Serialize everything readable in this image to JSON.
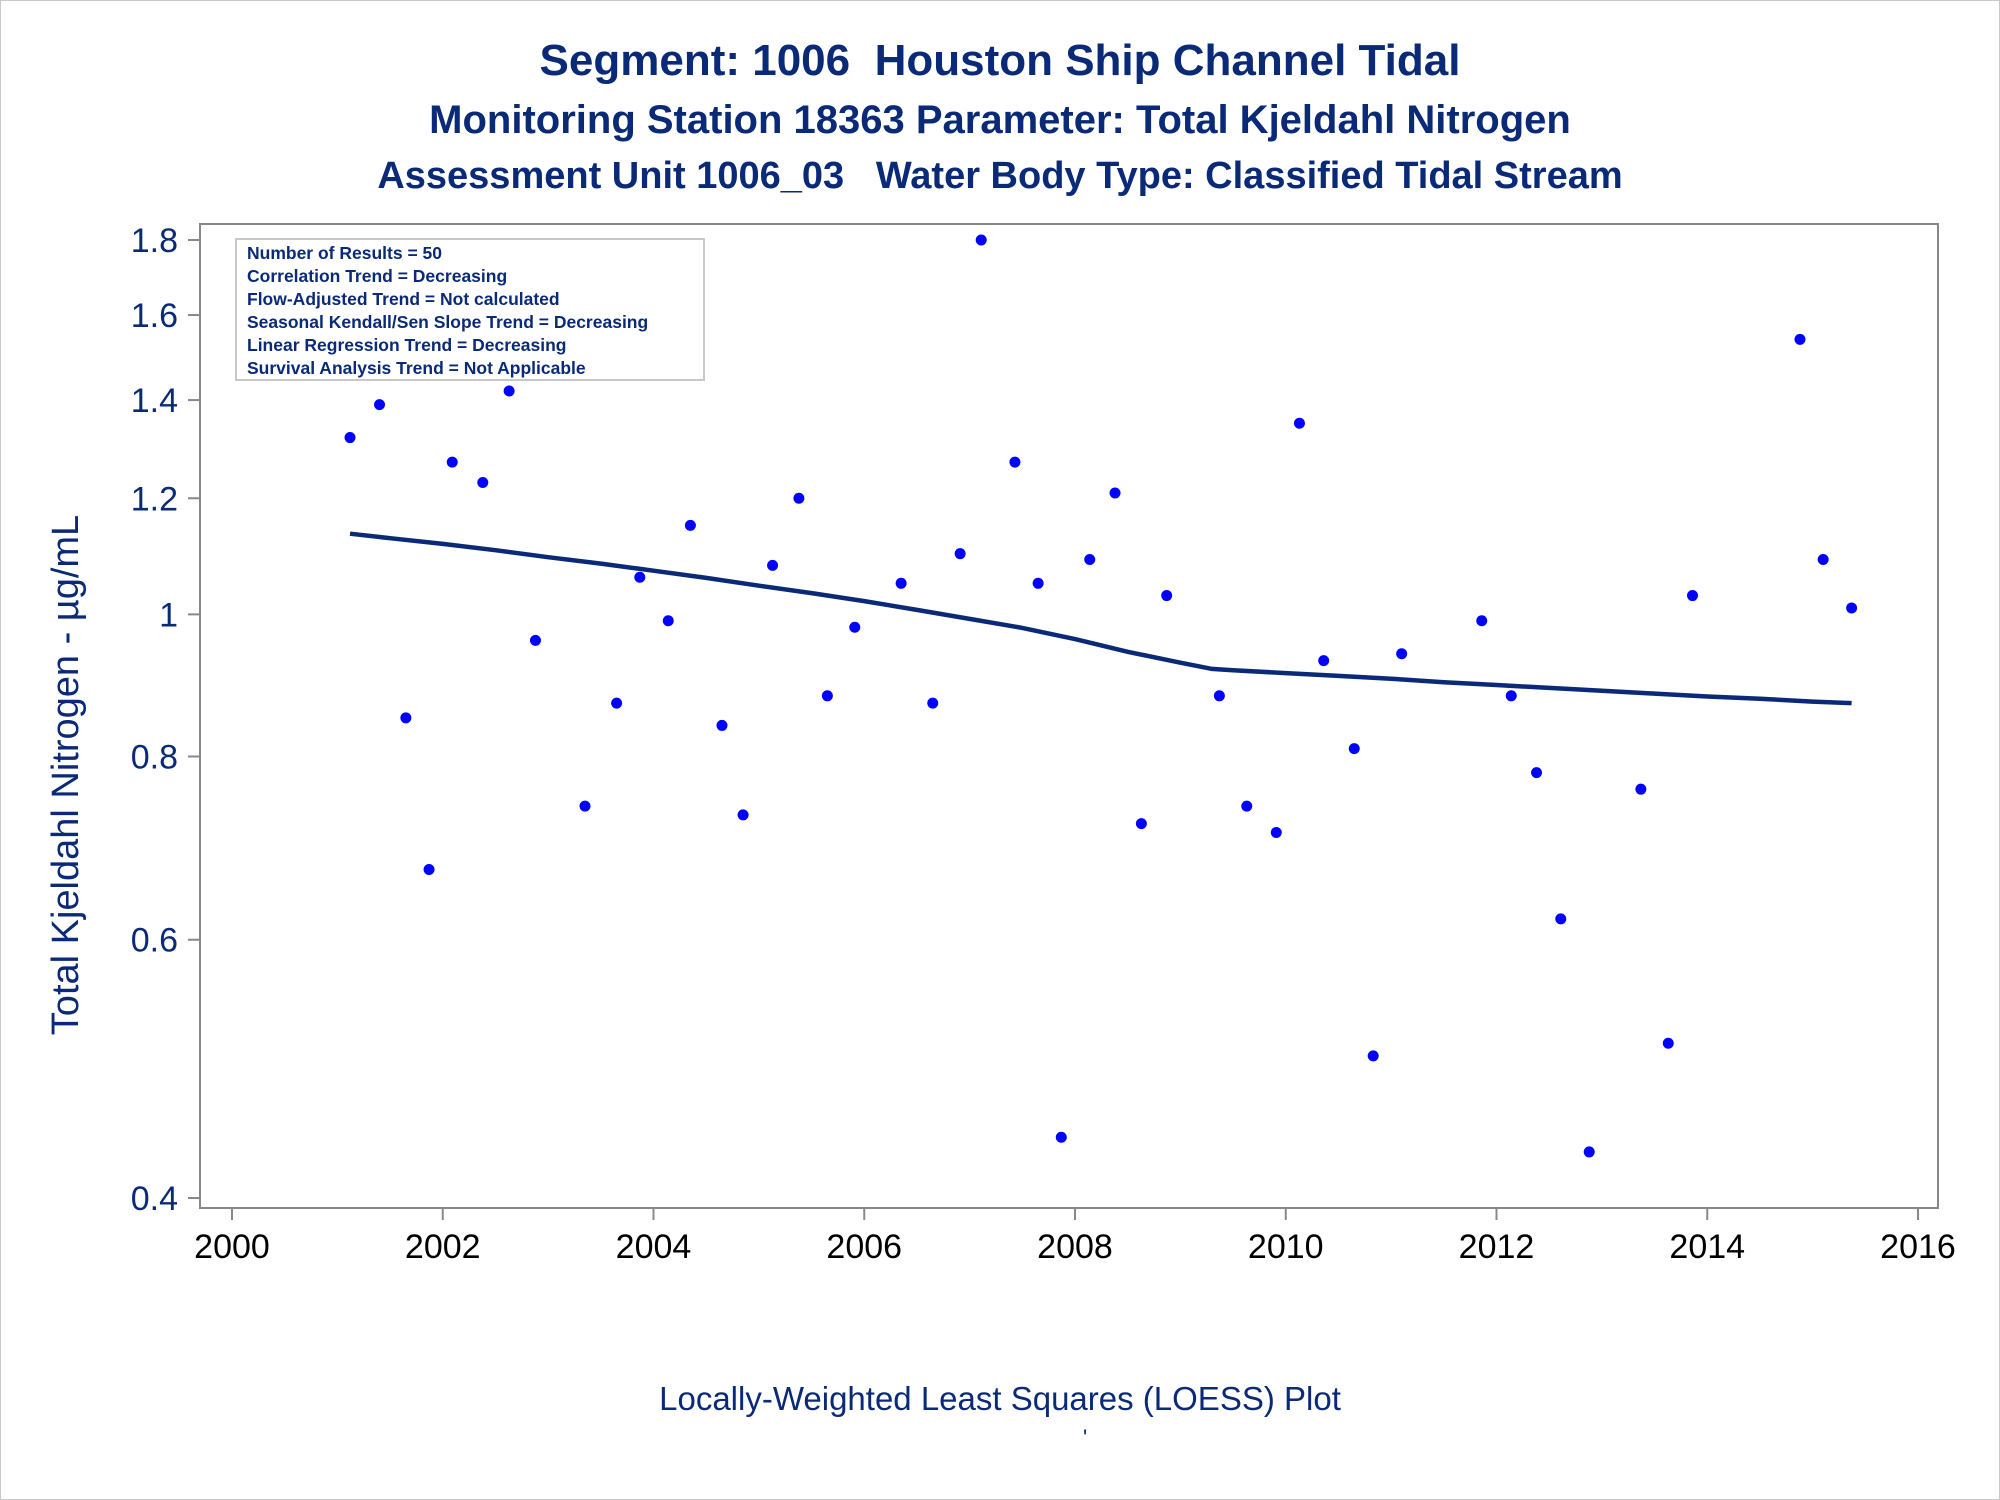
{
  "titles": {
    "line1": "Segment: 1006  Houston Ship Channel Tidal",
    "line2": "Monitoring Station 18363 Parameter: Total Kjeldahl Nitrogen",
    "line3": "Assessment Unit 1006_03   Water Body Type: Classified Tidal Stream"
  },
  "footnote": "Locally-Weighted Least Squares (LOESS) Plot",
  "footnote_mark": "'",
  "legend": [
    "Number of Results = 50",
    "Correlation Trend = Decreasing",
    "Flow-Adjusted Trend = Not calculated",
    "Seasonal Kendall/Sen Slope Trend = Decreasing",
    "Linear Regression Trend = Decreasing",
    "Survival Analysis Trend = Not Applicable"
  ],
  "colors": {
    "title": "#0a2a78",
    "points": "#0000ff",
    "loess": "#0a2a78",
    "axis": "#888888"
  },
  "chart_data": {
    "type": "scatter",
    "ylabel": "Total Kjeldahl Nitrogen -  µg/mL",
    "xlabel": "",
    "y_scale": "log",
    "xlim": [
      2000,
      2016
    ],
    "ylim": [
      0.4,
      1.8
    ],
    "x_ticks": [
      "2000",
      "2002",
      "2004",
      "2006",
      "2008",
      "2010",
      "2012",
      "2014",
      "2016"
    ],
    "y_ticks": [
      "0.4",
      "0.6",
      "0.8",
      "1",
      "1.2",
      "1.4",
      "1.6",
      "1.8"
    ],
    "grid": false,
    "series": [
      {
        "kind": "points",
        "x": [
          2001.12,
          2001.4,
          2001.65,
          2001.87,
          2002.09,
          2002.38,
          2002.63,
          2002.88,
          2003.13,
          2003.35,
          2003.65,
          2003.87,
          2004.14,
          2004.35,
          2004.65,
          2004.85,
          2005.13,
          2005.38,
          2005.65,
          2005.91,
          2006.35,
          2006.65,
          2006.91,
          2007.11,
          2007.43,
          2007.65,
          2007.87,
          2008.14,
          2008.38,
          2008.63,
          2008.87,
          2009.37,
          2009.63,
          2009.91,
          2010.13,
          2010.36,
          2010.65,
          2010.83,
          2011.1,
          2011.86,
          2012.14,
          2012.38,
          2012.61,
          2012.88,
          2013.37,
          2013.63,
          2013.86,
          2014.88,
          2015.1,
          2015.37
        ],
        "y": [
          1.32,
          1.39,
          0.85,
          0.67,
          1.27,
          1.23,
          1.42,
          0.96,
          1.53,
          0.74,
          0.87,
          1.06,
          0.99,
          1.15,
          0.84,
          0.73,
          1.08,
          1.2,
          0.88,
          0.98,
          1.05,
          0.87,
          1.1,
          1.8,
          1.27,
          1.05,
          0.44,
          1.09,
          1.21,
          0.72,
          1.03,
          0.88,
          0.74,
          0.71,
          1.35,
          0.93,
          0.81,
          0.5,
          0.94,
          0.99,
          0.88,
          0.78,
          0.62,
          0.43,
          0.76,
          0.51,
          1.03,
          1.54,
          1.09,
          1.01
        ]
      },
      {
        "kind": "loess",
        "x": [
          2001.12,
          2001.5,
          2002.0,
          2002.5,
          2003.0,
          2003.5,
          2004.0,
          2004.5,
          2005.0,
          2005.5,
          2006.0,
          2006.5,
          2007.0,
          2007.5,
          2008.0,
          2008.5,
          2009.0,
          2009.3,
          2009.5,
          2010.0,
          2010.5,
          2011.0,
          2011.5,
          2012.0,
          2012.5,
          2013.0,
          2013.5,
          2014.0,
          2014.5,
          2015.0,
          2015.37
        ],
        "y": [
          1.135,
          1.127,
          1.117,
          1.106,
          1.094,
          1.083,
          1.071,
          1.059,
          1.046,
          1.034,
          1.021,
          1.007,
          0.993,
          0.979,
          0.962,
          0.943,
          0.927,
          0.918,
          0.916,
          0.912,
          0.908,
          0.904,
          0.899,
          0.895,
          0.891,
          0.887,
          0.883,
          0.879,
          0.876,
          0.872,
          0.87
        ]
      }
    ]
  }
}
